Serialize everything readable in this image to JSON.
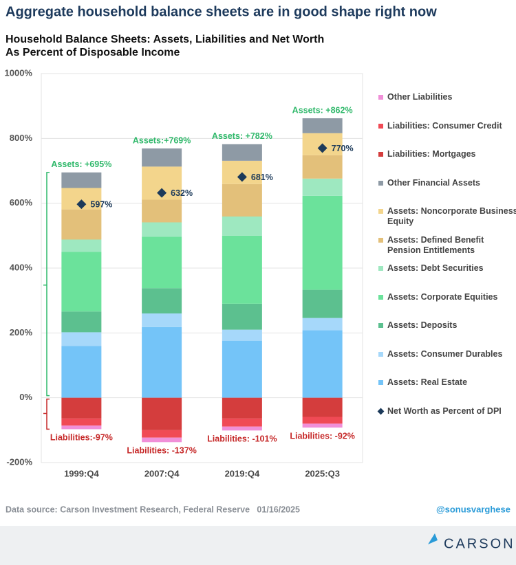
{
  "headline": "Aggregate household balance sheets are in good shape right now",
  "chart_data": {
    "type": "bar",
    "stacked": true,
    "title": [
      "Household Balance Sheets: Assets, Liabilities and Net Worth",
      "As Percent of Disposable Income"
    ],
    "categories": [
      "1999:Q4",
      "2007:Q4",
      "2019:Q4",
      "2025:Q3"
    ],
    "ylim": [
      -200,
      1000
    ],
    "yticks": [
      {
        "value": -200,
        "label": "-200%"
      },
      {
        "value": 0,
        "label": "0%"
      },
      {
        "value": 200,
        "label": "200%"
      },
      {
        "value": 400,
        "label": "400%"
      },
      {
        "value": 600,
        "label": "600%"
      },
      {
        "value": 800,
        "label": "800%"
      },
      {
        "value": 1000,
        "label": "1000%"
      }
    ],
    "grid": true,
    "series": [
      {
        "name": "Other Liabilities",
        "color": "#f08fd8",
        "values": [
          -11,
          -14,
          -12,
          -12
        ]
      },
      {
        "name": "Liabilities: Consumer Credit",
        "color": "#f04a55",
        "values": [
          -22,
          -23,
          -25,
          -21
        ]
      },
      {
        "name": "Liabilities: Mortgages",
        "color": "#d43d3d",
        "values": [
          -64,
          -100,
          -64,
          -59
        ]
      },
      {
        "name": "Other Financial Assets",
        "color": "#8e9aa5",
        "values": [
          48,
          56,
          51,
          46
        ]
      },
      {
        "name": "Assets: Noncorporate Business Equity",
        "color": "#f3d58c",
        "values": [
          66,
          102,
          72,
          68
        ]
      },
      {
        "name": "Assets: Defined Benefit Pension Entitlements",
        "color": "#e3c07a",
        "values": [
          93,
          70,
          100,
          72
        ]
      },
      {
        "name": "Assets: Debt Securities",
        "color": "#9ee8c0",
        "values": [
          38,
          44,
          59,
          53
        ]
      },
      {
        "name": "Assets: Corporate Equities",
        "color": "#6be29b",
        "values": [
          184,
          159,
          210,
          290
        ]
      },
      {
        "name": "Assets: Deposits",
        "color": "#5cc08f",
        "values": [
          64,
          78,
          80,
          87
        ]
      },
      {
        "name": "Assets: Consumer Durables",
        "color": "#a6d8fa",
        "values": [
          42,
          42,
          34,
          38
        ]
      },
      {
        "name": "Assets: Real Estate",
        "color": "#74c4f8",
        "values": [
          160,
          218,
          176,
          208
        ]
      },
      {
        "name": "Net Worth as Percent of DPI",
        "color": "#1c3a5a",
        "type": "scatter",
        "values": [
          597,
          632,
          681,
          770
        ],
        "value_labels": [
          "597%",
          "632%",
          "681%",
          "770%"
        ]
      }
    ],
    "asset_labels": [
      "Assets: +695%",
      "Assets:+769%",
      "Assets: +782%",
      "Assets: +862%"
    ],
    "liability_labels": [
      "Liabilities:-97%",
      "Liabilities: -137%",
      "Liabilities: -101%",
      "Liabilities: -92%"
    ]
  },
  "source": "Data source: Carson Investment Research, Federal Reserve   01/16/2025",
  "handle": "@sonusvarghese",
  "logo": "CARSON"
}
